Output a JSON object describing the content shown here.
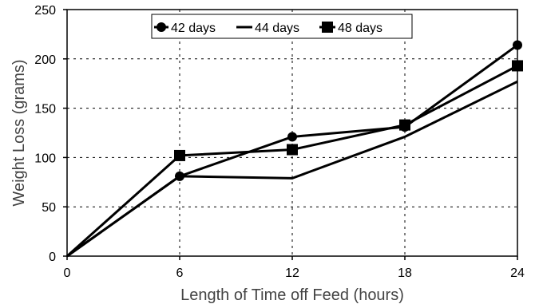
{
  "chart_data": {
    "type": "line",
    "title": "",
    "xlabel": "Length of Time off Feed (hours)",
    "ylabel": "Weight Loss (grams)",
    "xlim": [
      0,
      24
    ],
    "ylim": [
      0,
      250
    ],
    "x_ticks": [
      0,
      6,
      12,
      18,
      24
    ],
    "y_ticks": [
      0,
      50,
      100,
      150,
      200,
      250
    ],
    "grid": "dashed",
    "legend_position": "top-center",
    "x": [
      0,
      6,
      12,
      18,
      24
    ],
    "series": [
      {
        "name": "42 days",
        "marker": "circle",
        "color": "#000000",
        "values": [
          0,
          81,
          121,
          131,
          214
        ]
      },
      {
        "name": "44 days",
        "marker": "none",
        "color": "#000000",
        "values": [
          0,
          81,
          79,
          121,
          177
        ]
      },
      {
        "name": "48 days",
        "marker": "square",
        "color": "#000000",
        "values": [
          0,
          102,
          108,
          133,
          193
        ]
      }
    ]
  }
}
